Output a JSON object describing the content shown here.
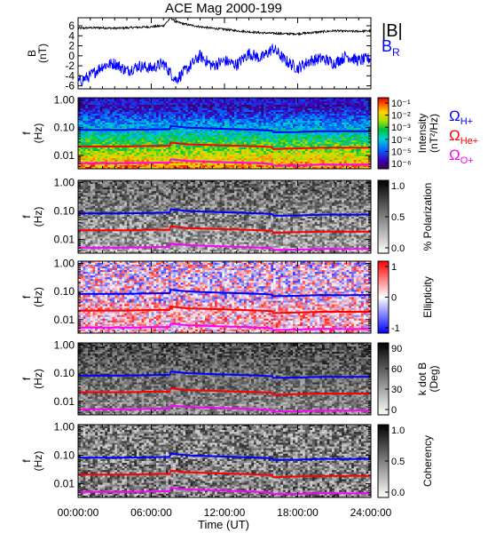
{
  "figure": {
    "title": "ACE Mag 2000-199",
    "xlabel": "Time (UT)",
    "x_ticks": [
      "00:00:00",
      "06:00:00",
      "12:00:00",
      "18:00:00",
      "24:00:00"
    ]
  },
  "chart_data": [
    {
      "type": "line",
      "ylabel_line1": "B",
      "ylabel_line2": "(nT)",
      "yticks": [
        "6",
        "4",
        "2",
        "0",
        "-2",
        "-4",
        "-6"
      ],
      "ylim": [
        -6.6,
        7.6
      ],
      "x_hours": [
        0,
        1,
        2,
        3,
        4,
        5,
        6,
        7,
        7.6,
        8,
        9,
        10,
        11,
        12,
        13,
        14,
        15,
        16,
        17,
        18,
        19,
        20,
        21,
        22,
        23,
        24
      ],
      "series": [
        {
          "name": "|B|",
          "color": "#000000",
          "values": [
            5.5,
            5.6,
            5.6,
            5.5,
            5.6,
            5.7,
            5.8,
            6.0,
            7.6,
            6.8,
            6.2,
            5.8,
            5.5,
            5.3,
            5.0,
            4.8,
            4.6,
            4.5,
            4.4,
            4.4,
            4.6,
            4.8,
            5.0,
            4.9,
            4.9,
            5.0
          ]
        },
        {
          "name": "B",
          "name_sub": "R",
          "color": "#0000ff",
          "values": [
            -5.2,
            -4.0,
            -2.0,
            -1.5,
            -3.0,
            -2.0,
            -2.5,
            -1.5,
            -3.5,
            -4.8,
            -2.5,
            0.0,
            -2.0,
            -1.0,
            -1.8,
            0.5,
            -0.5,
            1.5,
            -1.0,
            -2.5,
            -1.0,
            -0.5,
            -1.5,
            0.0,
            -1.0,
            -0.5
          ]
        }
      ]
    },
    {
      "type": "heatmap",
      "ylabel_line1": "f",
      "ylabel_line2": "(Hz)",
      "yticks": [
        "1.00",
        "0.10",
        "0.01"
      ],
      "colorbar_label_line1": "Intensity",
      "colorbar_label_line2": "(nT²/Hz)",
      "colorbar_ticks": [
        "10⁻¹",
        "10⁻²",
        "10⁻³",
        "10⁻⁴",
        "10⁻⁵",
        "10⁻⁶"
      ],
      "colormap": "rainbow",
      "legend": [
        {
          "symbol": "Ω",
          "sub": "H+",
          "color": "#0000ff"
        },
        {
          "symbol": "Ω",
          "sub": "He+",
          "color": "#ff0000"
        },
        {
          "symbol": "Ω",
          "sub": "O+",
          "color": "#ff00ff"
        }
      ]
    },
    {
      "type": "heatmap",
      "ylabel_line1": "f",
      "ylabel_line2": "(Hz)",
      "yticks": [
        "1.00",
        "0.10",
        "0.01"
      ],
      "colorbar_label_line1": "% Polarization",
      "colorbar_label_line2": "",
      "colorbar_ticks": [
        "1.0",
        "0.5",
        "0.0"
      ],
      "colormap": "gray"
    },
    {
      "type": "heatmap",
      "ylabel_line1": "f",
      "ylabel_line2": "(Hz)",
      "yticks": [
        "1.00",
        "0.10",
        "0.01"
      ],
      "colorbar_label_line1": "Ellipticity",
      "colorbar_label_line2": "",
      "colorbar_ticks": [
        "1",
        "0",
        "-1"
      ],
      "colormap": "bluewhitered"
    },
    {
      "type": "heatmap",
      "ylabel_line1": "f",
      "ylabel_line2": "(Hz)",
      "yticks": [
        "1.00",
        "0.10",
        "0.01"
      ],
      "colorbar_label_line1": "k dot B",
      "colorbar_label_line2": "(Deg)",
      "colorbar_ticks": [
        "90",
        "60",
        "30",
        "0"
      ],
      "colormap": "gray"
    },
    {
      "type": "heatmap",
      "ylabel_line1": "f",
      "ylabel_line2": "(Hz)",
      "yticks": [
        "1.00",
        "0.10",
        "0.01"
      ],
      "colorbar_label_line1": "Coherency",
      "colorbar_label_line2": "",
      "colorbar_ticks": [
        "1.0",
        "0.5",
        "0.0"
      ],
      "colormap": "gray"
    }
  ],
  "cyclotron_lines": {
    "x_hours": [
      0,
      2,
      4,
      6,
      7.5,
      7.6,
      9,
      12,
      15,
      15.9,
      16,
      18,
      20,
      22,
      24
    ],
    "H+_hz": [
      0.083,
      0.082,
      0.083,
      0.086,
      0.088,
      0.115,
      0.1,
      0.09,
      0.082,
      0.078,
      0.068,
      0.07,
      0.075,
      0.074,
      0.075
    ],
    "He+_hz": [
      0.021,
      0.021,
      0.021,
      0.022,
      0.022,
      0.029,
      0.025,
      0.023,
      0.021,
      0.02,
      0.017,
      0.018,
      0.019,
      0.019,
      0.019
    ],
    "O+_hz": [
      0.0052,
      0.0052,
      0.0052,
      0.0054,
      0.0055,
      0.0072,
      0.0063,
      0.0057,
      0.0052,
      0.0049,
      0.0043,
      0.0044,
      0.0047,
      0.0046,
      0.0047
    ]
  },
  "colors": {
    "H+": "#0000ff",
    "He+": "#ff0000",
    "O+": "#ff00ff"
  }
}
